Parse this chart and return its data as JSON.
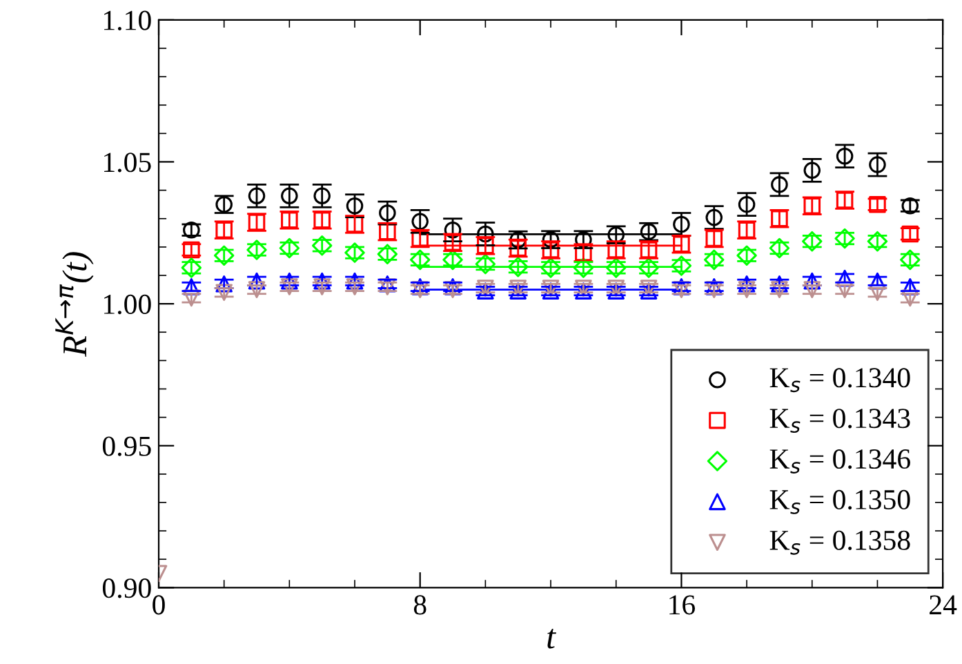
{
  "chart_data": {
    "type": "scatter",
    "xlabel": "t",
    "ylabel": "R$^{K→π}$(t)",
    "xlim": [
      0,
      24
    ],
    "xticks": [
      0,
      8,
      16,
      24
    ],
    "ylim": [
      0.9,
      1.1
    ],
    "yticks": [
      {
        "value": 0.9,
        "label": "0.90"
      },
      {
        "value": 0.95,
        "label": "0.95"
      },
      {
        "value": 1.0,
        "label": "1.00"
      },
      {
        "value": 1.05,
        "label": "1.05"
      },
      {
        "value": 1.1,
        "label": "1.10"
      }
    ],
    "grid": false,
    "legend": "bottom right",
    "series": [
      {
        "name": "K$_{s}$ = 0.1340",
        "color": "#000000",
        "marker": "circle",
        "x": [
          1,
          2,
          3,
          4,
          5,
          6,
          7,
          8,
          9,
          10,
          11,
          12,
          13,
          14,
          15,
          16,
          17,
          18,
          19,
          20,
          21,
          22,
          23
        ],
        "values": [
          1.026,
          1.035,
          1.038,
          1.038,
          1.038,
          1.0345,
          1.032,
          1.029,
          1.026,
          1.0246,
          1.0225,
          1.0226,
          1.0226,
          1.0243,
          1.0254,
          1.028,
          1.0304,
          1.035,
          1.042,
          1.047,
          1.052,
          1.049,
          1.0345
        ],
        "errors": [
          0.002,
          0.003,
          0.004,
          0.004,
          0.004,
          0.004,
          0.004,
          0.004,
          0.004,
          0.004,
          0.003,
          0.003,
          0.003,
          0.003,
          0.003,
          0.004,
          0.004,
          0.004,
          0.004,
          0.004,
          0.004,
          0.004,
          0.002
        ]
      },
      {
        "name": "K$_{s}$ = 0.1343",
        "color": "#ff0000",
        "marker": "square",
        "x": [
          1,
          2,
          3,
          4,
          5,
          6,
          7,
          8,
          9,
          10,
          11,
          12,
          13,
          14,
          15,
          16,
          17,
          18,
          19,
          20,
          21,
          22,
          23
        ],
        "values": [
          1.019,
          1.026,
          1.0287,
          1.0295,
          1.0295,
          1.028,
          1.0254,
          1.023,
          1.0216,
          1.0205,
          1.0196,
          1.019,
          1.018,
          1.019,
          1.019,
          1.021,
          1.023,
          1.026,
          1.03,
          1.0345,
          1.0365,
          1.035,
          1.0246
        ],
        "errors": [
          0.002,
          0.003,
          0.003,
          0.003,
          0.003,
          0.003,
          0.003,
          0.003,
          0.003,
          0.003,
          0.003,
          0.003,
          0.003,
          0.003,
          0.003,
          0.003,
          0.003,
          0.003,
          0.003,
          0.003,
          0.003,
          0.002,
          0.002
        ]
      },
      {
        "name": "K$_{s}$ = 0.1346",
        "color": "#00ff00",
        "marker": "diamond",
        "x": [
          1,
          2,
          3,
          4,
          5,
          6,
          7,
          8,
          9,
          10,
          11,
          12,
          13,
          14,
          15,
          16,
          17,
          18,
          19,
          20,
          21,
          22,
          23
        ],
        "values": [
          1.0127,
          1.017,
          1.019,
          1.0196,
          1.0205,
          1.018,
          1.0175,
          1.0155,
          1.0155,
          1.014,
          1.013,
          1.0127,
          1.0127,
          1.0127,
          1.0127,
          1.0134,
          1.0155,
          1.017,
          1.0196,
          1.022,
          1.023,
          1.022,
          1.0155
        ],
        "errors": [
          0.002,
          0.002,
          0.002,
          0.002,
          0.002,
          0.002,
          0.002,
          0.002,
          0.002,
          0.002,
          0.002,
          0.002,
          0.002,
          0.002,
          0.002,
          0.002,
          0.002,
          0.002,
          0.002,
          0.002,
          0.002,
          0.002,
          0.002
        ]
      },
      {
        "name": "K$_{s}$ = 0.1350",
        "color": "#0000ff",
        "marker": "triangle",
        "x": [
          1,
          2,
          3,
          4,
          5,
          6,
          7,
          8,
          9,
          10,
          11,
          12,
          13,
          14,
          15,
          16,
          17,
          18,
          19,
          20,
          21,
          22,
          23
        ],
        "values": [
          1.006,
          1.007,
          1.008,
          1.008,
          1.008,
          1.008,
          1.007,
          1.006,
          1.006,
          1.0045,
          1.0045,
          1.0045,
          1.0045,
          1.0045,
          1.0045,
          1.006,
          1.006,
          1.007,
          1.007,
          1.008,
          1.009,
          1.008,
          1.006
        ],
        "errors": [
          0.0015,
          0.0015,
          0.0015,
          0.0015,
          0.0015,
          0.0015,
          0.0015,
          0.0015,
          0.0015,
          0.0015,
          0.0015,
          0.0015,
          0.0015,
          0.0015,
          0.0015,
          0.0015,
          0.0015,
          0.0015,
          0.0015,
          0.0015,
          0.0015,
          0.0015,
          0.0015
        ]
      },
      {
        "name": "K$_{s}$ = 0.1358",
        "color": "#bc8f8f",
        "marker": "triangle_down",
        "x": [
          0,
          1,
          2,
          3,
          4,
          5,
          6,
          7,
          8,
          9,
          10,
          11,
          12,
          13,
          14,
          15,
          16,
          17,
          18,
          19,
          20,
          21,
          22,
          23
        ],
        "values": [
          0.905,
          1.002,
          1.004,
          1.005,
          1.006,
          1.006,
          1.006,
          1.006,
          1.005,
          1.005,
          1.0055,
          1.0055,
          1.0055,
          1.0055,
          1.0055,
          1.0055,
          1.005,
          1.005,
          1.005,
          1.005,
          1.005,
          1.005,
          1.004,
          1.002
        ],
        "errors": [
          null,
          0.0015,
          0.0015,
          0.0015,
          0.0015,
          0.0015,
          0.0015,
          0.0015,
          0.0015,
          0.0015,
          0.0015,
          0.0015,
          0.0015,
          0.0015,
          0.0015,
          0.0015,
          0.0015,
          0.0015,
          0.0015,
          0.0015,
          0.0015,
          0.0015,
          0.0015,
          0.0015
        ]
      },
      {
        "type": "line",
        "color": "#000000",
        "x": [
          8,
          16
        ],
        "values": [
          1.0245,
          1.0245
        ]
      },
      {
        "type": "line",
        "color": "#ff0000",
        "x": [
          8,
          16
        ],
        "values": [
          1.0205,
          1.0205
        ]
      },
      {
        "type": "line",
        "color": "#00ff00",
        "x": [
          8,
          16
        ],
        "values": [
          1.013,
          1.013
        ]
      },
      {
        "type": "line",
        "color": "#0000ff",
        "x": [
          8,
          16
        ],
        "values": [
          1.005,
          1.005
        ]
      }
    ]
  }
}
